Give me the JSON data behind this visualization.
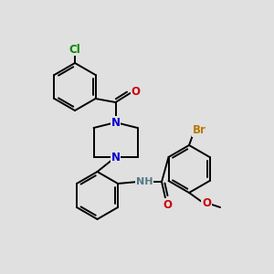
{
  "background_color": "#e0e0e0",
  "atom_colors": {
    "C": "#000000",
    "N": "#0000cc",
    "O": "#cc0000",
    "Br": "#bb7700",
    "Cl": "#008800",
    "H": "#557788"
  },
  "figsize": [
    3.0,
    3.0
  ],
  "dpi": 100,
  "lw": 1.4,
  "fs": 8.5,
  "ring_r": 22
}
